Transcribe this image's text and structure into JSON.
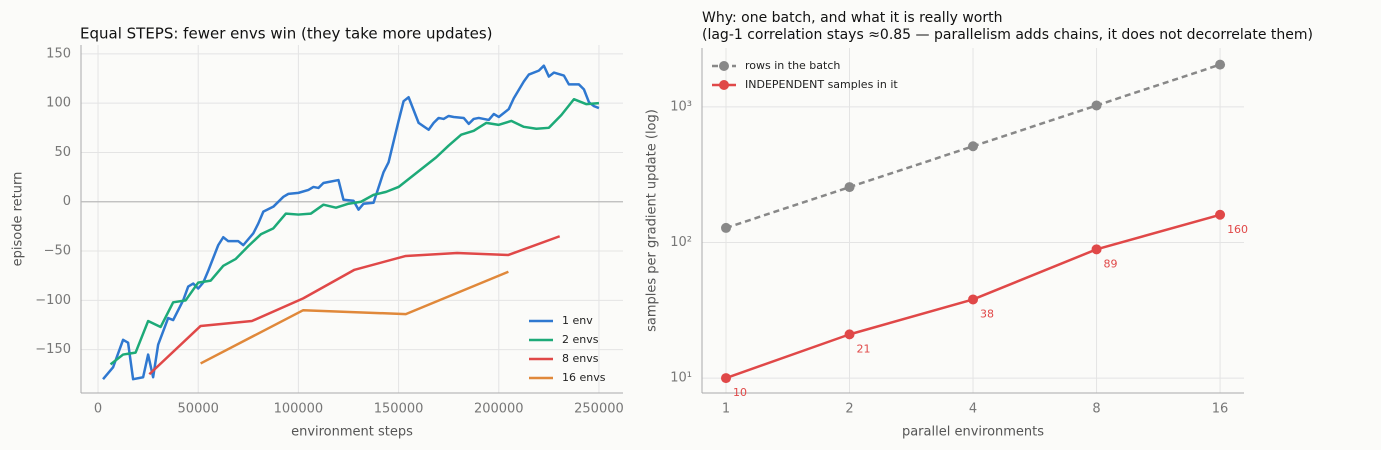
{
  "chart_data": [
    {
      "type": "line",
      "title": "Equal STEPS: fewer envs win (they take more updates)",
      "xlabel": "environment steps",
      "ylabel": "episode return",
      "xlim": [
        -8500,
        262000
      ],
      "ylim": [
        -194,
        159
      ],
      "xticks": [
        0,
        50000,
        100000,
        150000,
        200000,
        250000
      ],
      "yticks": [
        {
          "value": -150,
          "label": "−150"
        },
        {
          "value": -100,
          "label": "−100"
        },
        {
          "value": -50,
          "label": "−50"
        },
        0,
        50,
        100,
        150
      ],
      "grid": true,
      "reference_line": 0,
      "legend": "lower right",
      "series": [
        {
          "name": "1 env",
          "color": "#2f78d0",
          "x": [
            2500,
            7500,
            12500,
            15000,
            17500,
            22500,
            25000,
            27500,
            30000,
            35000,
            37500,
            42500,
            45000,
            47500,
            50000,
            52500,
            55000,
            60000,
            62500,
            65000,
            70000,
            72500,
            77500,
            80000,
            82500,
            87500,
            92500,
            95000,
            100000,
            105000,
            107500,
            110000,
            112500,
            115000,
            120000,
            122500,
            127500,
            130000,
            132500,
            137500,
            142500,
            145000,
            150000,
            152500,
            155000,
            160000,
            165000,
            167500,
            170000,
            172500,
            175000,
            177500,
            182500,
            185000,
            187500,
            190000,
            195000,
            197500,
            200000,
            205000,
            207500,
            212500,
            215000,
            220000,
            222500,
            225000,
            227500,
            232500,
            235000,
            240000,
            242500,
            245000,
            247500,
            250000
          ],
          "values": [
            -180,
            -168,
            -140,
            -143,
            -180,
            -178,
            -155,
            -178,
            -145,
            -118,
            -120,
            -100,
            -86,
            -83,
            -88,
            -82,
            -70,
            -44,
            -36,
            -40,
            -40,
            -44,
            -32,
            -22,
            -10,
            -5,
            5,
            8,
            9,
            12,
            15,
            14,
            19,
            20,
            22,
            2,
            1,
            -8,
            -2,
            -1,
            30,
            40,
            82,
            102,
            106,
            80,
            73,
            80,
            85,
            84,
            87,
            86,
            85,
            79,
            84,
            85,
            83,
            89,
            86,
            94,
            105,
            122,
            129,
            133,
            138,
            127,
            131,
            128,
            119,
            119,
            114,
            101,
            97,
            95
          ]
        },
        {
          "name": "2 envs",
          "color": "#1daa78",
          "x": [
            6250,
            12500,
            18750,
            25000,
            31250,
            37500,
            43750,
            50000,
            56250,
            62500,
            68750,
            75000,
            81250,
            87500,
            93750,
            100000,
            106250,
            112500,
            118750,
            125000,
            131250,
            137500,
            143750,
            150000,
            156250,
            162500,
            168750,
            175000,
            181250,
            187500,
            193750,
            200000,
            206250,
            212500,
            218750,
            225000,
            231250,
            237500,
            243750,
            250000
          ],
          "values": [
            -165,
            -155,
            -153,
            -121,
            -127,
            -102,
            -100,
            -82,
            -80,
            -65,
            -58,
            -45,
            -33,
            -27,
            -12,
            -13,
            -12,
            -3,
            -6,
            -2,
            0,
            7,
            10,
            15,
            25,
            35,
            45,
            57,
            68,
            72,
            80,
            78,
            82,
            76,
            74,
            75,
            88,
            104,
            99,
            100
          ]
        },
        {
          "name": "8 envs",
          "color": "#e04848",
          "x": [
            25600,
            51200,
            76800,
            102400,
            128000,
            153600,
            179200,
            204800,
            230400
          ],
          "values": [
            -175,
            -126,
            -121,
            -98,
            -69,
            -55,
            -52,
            -54,
            -35
          ]
        },
        {
          "name": "16 envs",
          "color": "#e0883a",
          "x": [
            51200,
            102400,
            153600,
            204800
          ],
          "values": [
            -164,
            -110,
            -114,
            -71
          ]
        }
      ]
    },
    {
      "type": "line",
      "title": [
        "Why: one batch, and what it is really worth",
        "(lag-1 correlation stays ≈0.85 — parallelism adds chains, it does not decorrelate them)"
      ],
      "xlabel": "parallel environments",
      "ylabel": "samples per gradient update (log)",
      "xscale": "log2",
      "yscale": "log",
      "xlim": [
        0.874,
        18.3
      ],
      "ylim": [
        7.76,
        2716
      ],
      "xticks": [
        1,
        2,
        4,
        8,
        16
      ],
      "yticks": [
        {
          "value": 10,
          "label": "10¹"
        },
        {
          "value": 100,
          "label": "10²"
        },
        {
          "value": 1000,
          "label": "10³"
        }
      ],
      "grid": true,
      "markers": true,
      "legend": "upper left",
      "x": [
        1,
        2,
        4,
        8,
        16
      ],
      "series": [
        {
          "name": "rows in the batch",
          "color": "#888888",
          "dash": "dashed",
          "values": [
            128,
            256,
            512,
            1024,
            2048
          ]
        },
        {
          "name": "INDEPENDENT samples in it",
          "color": "#e04848",
          "data_labels": true,
          "values": [
            10,
            21,
            38,
            89,
            160
          ]
        }
      ]
    }
  ]
}
